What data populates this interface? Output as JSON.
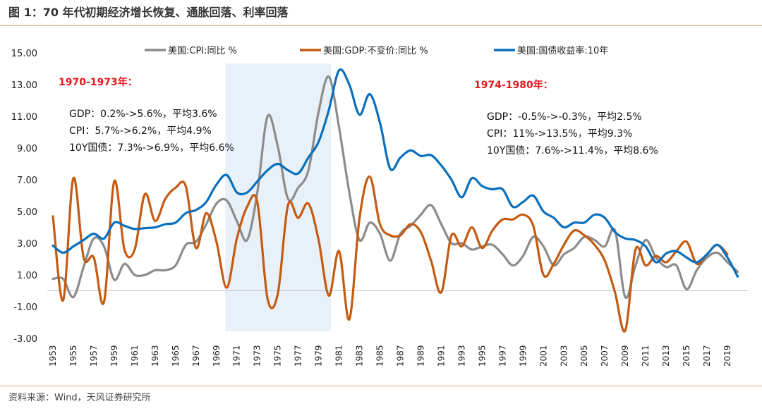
{
  "header": {
    "title": "图 1：70 年代初期经济增长恢复、通胀回落、利率回落"
  },
  "footer": {
    "source": "资料来源：Wind，天风证券研究所"
  },
  "colors": {
    "cpi": "#8c8c8c",
    "gdp": "#c55a11",
    "yield": "#0a6fbd",
    "highlight": "#e8f1f9",
    "accent": "#e9a46a",
    "annotation_header": "#e41a1c"
  },
  "annotations": [
    {
      "header": "1970-1973年：",
      "lines": [
        "GDP：0.2%->5.6%，平均3.6%",
        "CPI：5.7%->6.2%，平均4.9%",
        "10Y国债：7.3%->6.9%，平均6.6%"
      ]
    },
    {
      "header": "1974-1980年：",
      "lines": [
        "GDP：-0.5%->-0.3%，平均2.5%",
        "CPI：11%->13.5%，平均9.3%",
        "10Y国债：7.6%->11.4%，平均8.6%"
      ]
    }
  ],
  "chart_data": {
    "type": "line",
    "ylim": [
      -3,
      15
    ],
    "yticks": [
      "15.00",
      "13.00",
      "11.00",
      "9.00",
      "7.00",
      "5.00",
      "3.00",
      "1.00",
      "-1.00",
      "-3.00"
    ],
    "xticks": [
      "1953",
      "1955",
      "1957",
      "1959",
      "1961",
      "1963",
      "1965",
      "1967",
      "1969",
      "1971",
      "1973",
      "1975",
      "1977",
      "1979",
      "1981",
      "1983",
      "1985",
      "1987",
      "1989",
      "1991",
      "1993",
      "1995",
      "1997",
      "1999",
      "2001",
      "2003",
      "2005",
      "2007",
      "2009",
      "2011",
      "2013",
      "2015",
      "2017",
      "2019"
    ],
    "xlim": [
      1953,
      2021
    ],
    "highlight_range": [
      1970,
      1980
    ],
    "legend_position": "top",
    "series": [
      {
        "name": "美国:CPI:同比 %",
        "color": "#8c8c8c",
        "x": [
          1953,
          1954,
          1955,
          1956,
          1957,
          1958,
          1959,
          1960,
          1961,
          1962,
          1963,
          1964,
          1965,
          1966,
          1967,
          1968,
          1969,
          1970,
          1971,
          1972,
          1973,
          1974,
          1975,
          1976,
          1977,
          1978,
          1979,
          1980,
          1981,
          1982,
          1983,
          1984,
          1985,
          1986,
          1987,
          1988,
          1989,
          1990,
          1991,
          1992,
          1993,
          1994,
          1995,
          1996,
          1997,
          1998,
          1999,
          2000,
          2001,
          2002,
          2003,
          2004,
          2005,
          2006,
          2007,
          2008,
          2009,
          2010,
          2011,
          2012,
          2013,
          2014,
          2015,
          2016,
          2017,
          2018,
          2019,
          2020
        ],
        "y": [
          0.75,
          0.75,
          -0.4,
          1.5,
          3.3,
          2.8,
          0.7,
          1.7,
          1.0,
          1.0,
          1.3,
          1.3,
          1.6,
          2.9,
          3.1,
          4.2,
          5.5,
          5.7,
          4.4,
          3.2,
          6.2,
          11.0,
          9.1,
          5.8,
          6.5,
          7.6,
          11.3,
          13.5,
          10.3,
          6.2,
          3.2,
          4.3,
          3.6,
          1.9,
          3.6,
          4.1,
          4.8,
          5.4,
          4.2,
          3.0,
          3.0,
          2.6,
          2.8,
          2.9,
          2.3,
          1.6,
          2.2,
          3.4,
          2.8,
          1.6,
          2.3,
          2.7,
          3.4,
          3.2,
          2.8,
          3.8,
          -0.4,
          1.6,
          3.2,
          2.1,
          1.5,
          1.6,
          0.1,
          1.3,
          2.1,
          2.4,
          1.8,
          1.2
        ]
      },
      {
        "name": "美国:GDP:不变价:同比 %",
        "color": "#c55a11",
        "x": [
          1953,
          1954,
          1955,
          1956,
          1957,
          1958,
          1959,
          1960,
          1961,
          1962,
          1963,
          1964,
          1965,
          1966,
          1967,
          1968,
          1969,
          1970,
          1971,
          1972,
          1973,
          1974,
          1975,
          1976,
          1977,
          1978,
          1979,
          1980,
          1981,
          1982,
          1983,
          1984,
          1985,
          1986,
          1987,
          1988,
          1989,
          1990,
          1991,
          1992,
          1993,
          1994,
          1995,
          1996,
          1997,
          1998,
          1999,
          2000,
          2001,
          2002,
          2003,
          2004,
          2005,
          2006,
          2007,
          2008,
          2009,
          2010,
          2011,
          2012,
          2013,
          2014,
          2015,
          2016,
          2017,
          2018,
          2019
        ],
        "y": [
          4.7,
          -0.6,
          7.1,
          2.1,
          2.1,
          -0.7,
          6.9,
          2.6,
          2.6,
          6.1,
          4.4,
          5.8,
          6.5,
          6.6,
          2.7,
          4.9,
          3.1,
          0.2,
          3.3,
          5.3,
          5.6,
          -0.5,
          -0.2,
          5.4,
          4.6,
          5.5,
          3.2,
          -0.3,
          2.5,
          -1.8,
          4.6,
          7.2,
          4.2,
          3.5,
          3.5,
          4.2,
          3.7,
          1.9,
          -0.1,
          3.5,
          2.8,
          4.0,
          2.7,
          3.8,
          4.5,
          4.5,
          4.8,
          4.1,
          1.0,
          1.7,
          2.9,
          3.8,
          3.5,
          2.9,
          1.9,
          -0.1,
          -2.5,
          2.6,
          1.6,
          2.2,
          1.8,
          2.5,
          3.1,
          1.7,
          2.3,
          2.9,
          2.3
        ]
      },
      {
        "name": "美国:国债收益率:10年",
        "color": "#0a6fbd",
        "x": [
          1953,
          1954,
          1955,
          1956,
          1957,
          1958,
          1959,
          1960,
          1961,
          1962,
          1963,
          1964,
          1965,
          1966,
          1967,
          1968,
          1969,
          1970,
          1971,
          1972,
          1973,
          1974,
          1975,
          1976,
          1977,
          1978,
          1979,
          1980,
          1981,
          1982,
          1983,
          1984,
          1985,
          1986,
          1987,
          1988,
          1989,
          1990,
          1991,
          1992,
          1993,
          1994,
          1995,
          1996,
          1997,
          1998,
          1999,
          2000,
          2001,
          2002,
          2003,
          2004,
          2005,
          2006,
          2007,
          2008,
          2009,
          2010,
          2011,
          2012,
          2013,
          2014,
          2015,
          2016,
          2017,
          2018,
          2019,
          2020
        ],
        "y": [
          2.85,
          2.4,
          2.8,
          3.2,
          3.6,
          3.3,
          4.3,
          4.1,
          3.9,
          3.95,
          4.0,
          4.2,
          4.3,
          4.9,
          5.1,
          5.6,
          6.7,
          7.3,
          6.2,
          6.2,
          6.9,
          7.6,
          8.0,
          7.6,
          7.4,
          8.4,
          9.4,
          11.4,
          13.9,
          13.0,
          11.1,
          12.4,
          10.6,
          7.7,
          8.4,
          8.85,
          8.5,
          8.55,
          7.9,
          7.0,
          5.9,
          7.1,
          6.6,
          6.4,
          6.4,
          5.3,
          5.6,
          6.0,
          5.0,
          4.6,
          4.0,
          4.3,
          4.3,
          4.8,
          4.6,
          3.7,
          3.3,
          3.2,
          2.8,
          1.8,
          2.35,
          2.5,
          2.1,
          1.8,
          2.3,
          2.9,
          2.1,
          0.9
        ]
      }
    ]
  }
}
